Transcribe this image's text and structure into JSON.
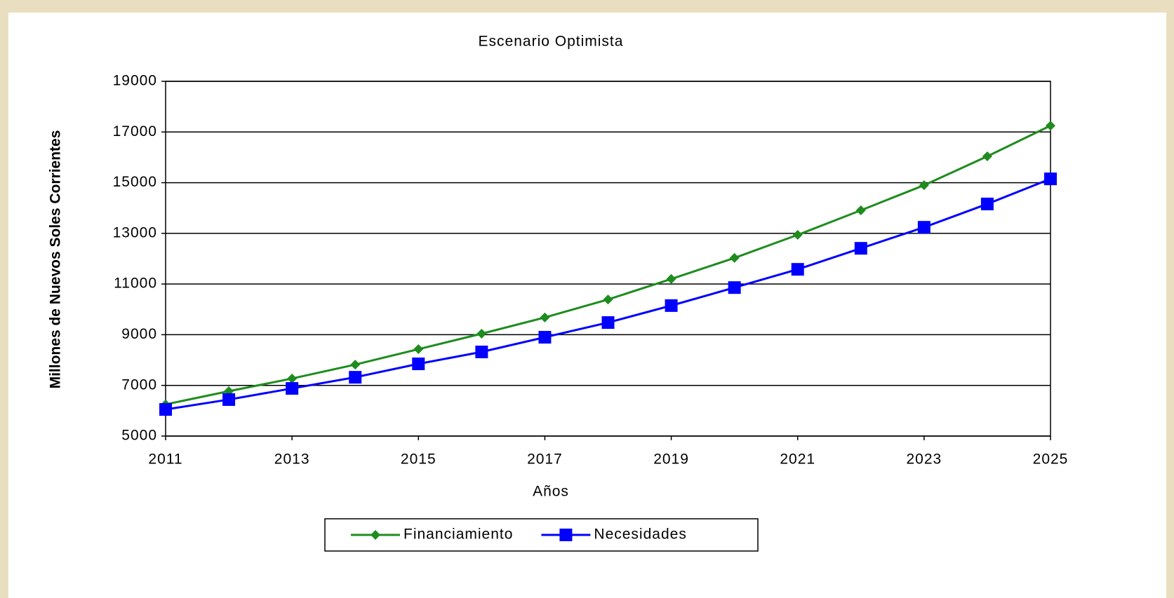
{
  "chart_data": {
    "type": "line",
    "title": "Escenario Optimista",
    "x_label": "Años",
    "y_label": "Millones de Nuevos Soles Corrientes",
    "x": [
      2011,
      2012,
      2013,
      2014,
      2015,
      2016,
      2017,
      2018,
      2019,
      2020,
      2021,
      2022,
      2023,
      2024,
      2025
    ],
    "series": [
      {
        "name": "Financiamiento",
        "color": "#1e8c1e",
        "marker": "diamond",
        "values": [
          6250,
          6770,
          7270,
          7820,
          8430,
          9040,
          9680,
          10390,
          11200,
          12030,
          12940,
          13910,
          14900,
          16040,
          17250
        ]
      },
      {
        "name": "Necesidades",
        "color": "#0000ff",
        "marker": "square",
        "values": [
          6050,
          6440,
          6880,
          7320,
          7850,
          8320,
          8900,
          9480,
          10150,
          10860,
          11580,
          12410,
          13240,
          14160,
          15150
        ]
      }
    ],
    "xlim": [
      2011,
      2025
    ],
    "xticks": [
      2011,
      2013,
      2015,
      2017,
      2019,
      2021,
      2023,
      2025
    ],
    "ylim": [
      5000,
      19000
    ],
    "yticks": [
      5000,
      7000,
      9000,
      11000,
      13000,
      15000,
      17000,
      19000
    ],
    "grid": true,
    "legend": "bottom"
  }
}
